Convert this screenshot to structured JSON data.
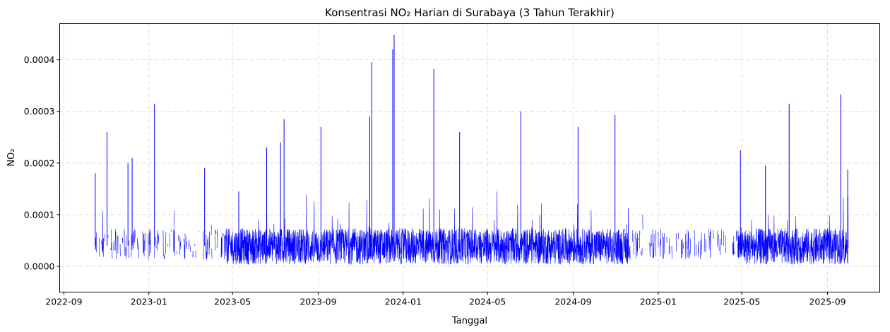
{
  "chart_data": {
    "type": "line",
    "title": "Konsentrasi NO₂ Harian di Surabaya (3 Tahun Terakhir)",
    "xlabel": "Tanggal",
    "ylabel": "NO₂",
    "x_axis_type": "date",
    "xlim": [
      "2022-08-26",
      "2025-11-15"
    ],
    "ylim": [
      -5e-05,
      0.00047
    ],
    "x_ticks": [
      "2022-09",
      "2023-01",
      "2023-05",
      "2023-09",
      "2024-01",
      "2024-05",
      "2024-09",
      "2025-01",
      "2025-05",
      "2025-09"
    ],
    "y_ticks": [
      "0.0000",
      "0.0001",
      "0.0002",
      "0.0003",
      "0.0004"
    ],
    "y_tick_values": [
      0,
      0.0001,
      0.0002,
      0.0003,
      0.0004
    ],
    "grid": true,
    "line_color": "#0000ff",
    "series": [
      {
        "name": "",
        "data_start": "2022-10-16",
        "data_end": "2025-10-01",
        "spikes": [
          {
            "x": "2022-10-16",
            "y": 0.00018
          },
          {
            "x": "2022-11-02",
            "y": 0.00026
          },
          {
            "x": "2022-12-02",
            "y": 0.0002
          },
          {
            "x": "2022-12-08",
            "y": 0.00021
          },
          {
            "x": "2023-01-09",
            "y": 0.000315
          },
          {
            "x": "2023-03-22",
            "y": 0.00019
          },
          {
            "x": "2023-05-10",
            "y": 0.000145
          },
          {
            "x": "2023-06-19",
            "y": 0.00023
          },
          {
            "x": "2023-07-09",
            "y": 0.00024
          },
          {
            "x": "2023-07-14",
            "y": 0.000285
          },
          {
            "x": "2023-09-05",
            "y": 0.00027
          },
          {
            "x": "2023-11-14",
            "y": 0.00029
          },
          {
            "x": "2023-11-17",
            "y": 0.000395
          },
          {
            "x": "2023-12-17",
            "y": 0.00042
          },
          {
            "x": "2023-12-19",
            "y": 0.000448
          },
          {
            "x": "2024-02-14",
            "y": 0.000382
          },
          {
            "x": "2024-03-22",
            "y": 0.00026
          },
          {
            "x": "2024-06-18",
            "y": 0.0003
          },
          {
            "x": "2024-09-08",
            "y": 0.00027
          },
          {
            "x": "2024-10-31",
            "y": 0.000293
          },
          {
            "x": "2025-04-29",
            "y": 0.000225
          },
          {
            "x": "2025-06-04",
            "y": 0.000195
          },
          {
            "x": "2025-07-08",
            "y": 0.000315
          },
          {
            "x": "2025-09-20",
            "y": 0.000333
          },
          {
            "x": "2025-09-30",
            "y": 0.000187
          }
        ]
      }
    ]
  }
}
